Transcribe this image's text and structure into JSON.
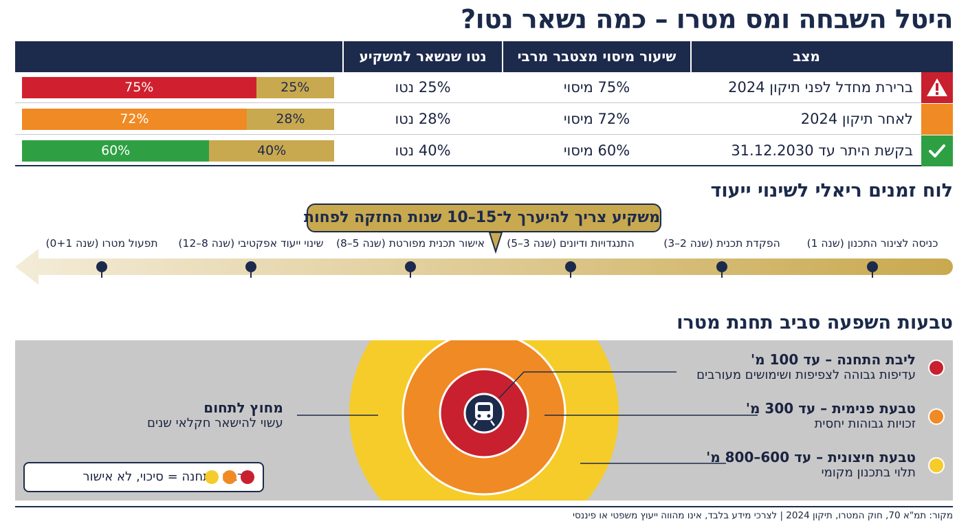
{
  "title": "היטל השבחה ומס מטרו – כמה נשאר נטו?",
  "table": {
    "headers": {
      "status": "מצב",
      "tax_rate": "שיעור מיסוי מצטבר מרבי",
      "net": "נטו שנשאר למשקיע"
    },
    "rows": [
      {
        "status_label": "ברירת מחדל לפני תיקון 2024",
        "icon": "warning-icon",
        "icon_color": "#c8202f",
        "tax_text": "75% מיסוי",
        "net_text": "25% נטו",
        "bar_color": "#d0202f",
        "risk_percent": 75,
        "risk_label": "75%",
        "net_label": "25%"
      },
      {
        "status_label": "לאחר תיקון 2024",
        "icon": "",
        "icon_color": "#f08a24",
        "tax_text": "72% מיסוי",
        "net_text": "28% נטו",
        "bar_color": "#f08a24",
        "risk_percent": 72,
        "risk_label": "72%",
        "net_label": "28%"
      },
      {
        "status_label": "בקשת היתר עד 31.12.2030",
        "icon": "check-icon",
        "icon_color": "#2ea043",
        "tax_text": "60% מיסוי",
        "net_text": "40% נטו",
        "bar_color": "#2ea043",
        "risk_percent": 60,
        "risk_label": "60%",
        "net_label": "40%"
      }
    ]
  },
  "timeline": {
    "title": "לוח זמנים ריאלי לשינוי ייעוד",
    "callout": "משקיע צריך להיערך ל־15–10 שנות החזקה לפחות",
    "steps": [
      "כניסה לצינור התכנון (שנה 1)",
      "הפקדת תכנית (שנה 2–3)",
      "התנגדויות ודיונים (שנה 3–5)",
      "אישור תכנית מפורטת (שנה 5–8)",
      "שינוי ייעוד אפקטיבי (שנה 8–12)",
      "תפעול מטרו (שנה 0+1)"
    ]
  },
  "zones": {
    "title": "טבעות השפעה סביב תחנת מטרו",
    "items": [
      {
        "name": "ליבת התחנה – עד 100 מ'",
        "desc": "עדיפות גבוהה לצפיפות ושימושים מעורבים",
        "color": "#c8202f"
      },
      {
        "name": "טבעת פנימית – עד 300 מ'",
        "desc": "זכויות גבוהות יחסית",
        "color": "#f08a24"
      },
      {
        "name": "טבעת חיצונית – עד 600–800 מ'",
        "desc": "תלוי בתכנון מקומי",
        "color": "#f5cc2a"
      }
    ],
    "outside": {
      "name": "מחוץ לתחום",
      "desc": "עשוי להישאר חקלאי שנים"
    },
    "legend": "קרבה לתחנה = סיכוי, לא אישור",
    "station_icon": "train-icon"
  },
  "source": "מקור: תמ\"א 70, חוק המטרו, תיקון 2024 | לצרכי מידע בלבד, אינו מהווה ייעוץ משפטי או פיננסי"
}
